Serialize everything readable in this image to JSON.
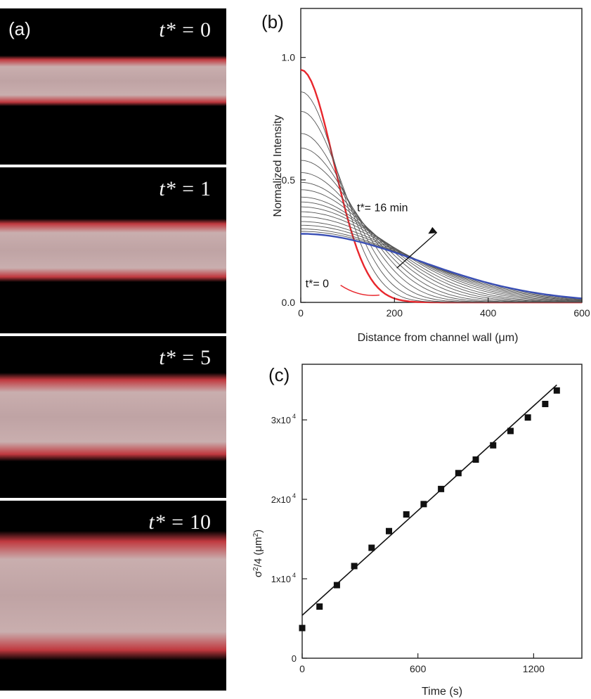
{
  "panel_a": {
    "letter": "(a)",
    "frames": [
      {
        "label_prefix": "t* = ",
        "label_value": "0",
        "band_spread": 0.32
      },
      {
        "label_prefix": "t* = ",
        "label_value": "1",
        "band_spread": 0.38
      },
      {
        "label_prefix": "t* = ",
        "label_value": "5",
        "band_spread": 0.55
      },
      {
        "label_prefix": "t* = ",
        "label_value": "10",
        "band_spread": 0.68
      }
    ],
    "colors": {
      "background": "#000000",
      "band_edge": "#c0393f",
      "band_core": "#c9aeae"
    }
  },
  "chart_data": [
    {
      "type": "line",
      "panel_letter": "(b)",
      "xlabel": "Distance from channel wall (μm)",
      "ylabel": "Normalized Intensity",
      "xlim": [
        0,
        600
      ],
      "ylim": [
        0,
        1.2
      ],
      "xticks": [
        0,
        200,
        400,
        600
      ],
      "yticks": [
        0.0,
        0.5,
        1.0
      ],
      "ytick_labels": [
        "0.0",
        "0.5",
        "1.0"
      ],
      "annotations": [
        {
          "text": "t*= 16 min",
          "x": 240,
          "y": 0.36
        },
        {
          "text": "t*= 0",
          "x": 25,
          "y": 0.09
        }
      ],
      "profile_model": "gaussian",
      "series": [
        {
          "role": "initial",
          "peak": 0.95,
          "sigma": 70,
          "color": "#e8262c"
        },
        {
          "role": "intermediate",
          "peak": 0.86,
          "sigma": 80,
          "color": "#555555"
        },
        {
          "role": "intermediate",
          "peak": 0.78,
          "sigma": 90,
          "color": "#555555"
        },
        {
          "role": "intermediate",
          "peak": 0.69,
          "sigma": 101,
          "color": "#555555"
        },
        {
          "role": "intermediate",
          "peak": 0.63,
          "sigma": 112,
          "color": "#555555"
        },
        {
          "role": "intermediate",
          "peak": 0.58,
          "sigma": 123,
          "color": "#555555"
        },
        {
          "role": "intermediate",
          "peak": 0.53,
          "sigma": 134,
          "color": "#555555"
        },
        {
          "role": "intermediate",
          "peak": 0.49,
          "sigma": 146,
          "color": "#555555"
        },
        {
          "role": "intermediate",
          "peak": 0.46,
          "sigma": 157,
          "color": "#555555"
        },
        {
          "role": "intermediate",
          "peak": 0.43,
          "sigma": 168,
          "color": "#555555"
        },
        {
          "role": "intermediate",
          "peak": 0.41,
          "sigma": 178,
          "color": "#555555"
        },
        {
          "role": "intermediate",
          "peak": 0.39,
          "sigma": 189,
          "color": "#555555"
        },
        {
          "role": "intermediate",
          "peak": 0.37,
          "sigma": 199,
          "color": "#555555"
        },
        {
          "role": "intermediate",
          "peak": 0.35,
          "sigma": 209,
          "color": "#555555"
        },
        {
          "role": "intermediate",
          "peak": 0.33,
          "sigma": 219,
          "color": "#555555"
        },
        {
          "role": "intermediate",
          "peak": 0.315,
          "sigma": 228,
          "color": "#555555"
        },
        {
          "role": "intermediate",
          "peak": 0.3,
          "sigma": 237,
          "color": "#555555"
        },
        {
          "role": "intermediate",
          "peak": 0.29,
          "sigma": 245,
          "color": "#555555"
        },
        {
          "role": "final",
          "peak": 0.28,
          "sigma": 252,
          "color": "#3a4fb5"
        }
      ]
    },
    {
      "type": "scatter",
      "panel_letter": "(c)",
      "xlabel": "Time (s)",
      "ylabel_html": [
        "σ",
        "2",
        "/4 (μm",
        "2",
        ")"
      ],
      "xlim": [
        0,
        1450
      ],
      "ylim": [
        0,
        37000
      ],
      "xticks": [
        0,
        600,
        1200
      ],
      "yticks": [
        0,
        10000,
        20000,
        30000
      ],
      "ytick_labels": [
        {
          "base": "0",
          "exp": ""
        },
        {
          "base": "1x10",
          "exp": "4"
        },
        {
          "base": "2x10",
          "exp": "4"
        },
        {
          "base": "3x10",
          "exp": "4"
        }
      ],
      "x": [
        0,
        90,
        180,
        270,
        360,
        450,
        540,
        630,
        720,
        810,
        900,
        990,
        1080,
        1170,
        1260,
        1320
      ],
      "y": [
        3800,
        6500,
        9200,
        11600,
        13900,
        16000,
        18100,
        19400,
        21300,
        23300,
        25000,
        26800,
        28600,
        30300,
        32000,
        33700
      ],
      "fit": {
        "x": [
          0,
          1320
        ],
        "y": [
          5400,
          34400
        ]
      }
    }
  ]
}
